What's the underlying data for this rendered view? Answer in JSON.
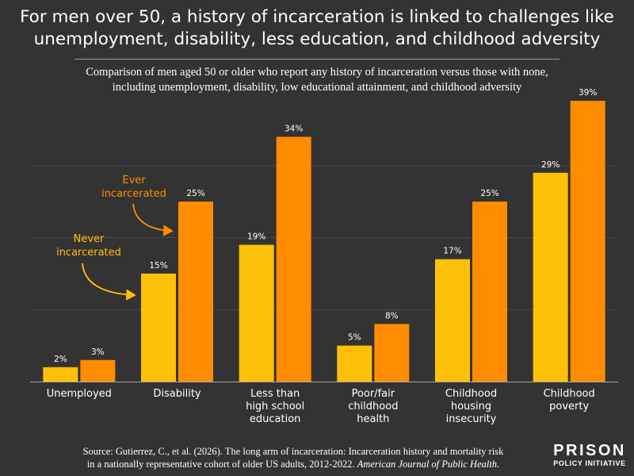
{
  "title_line1": "For men over 50, a history of incarceration is linked to challenges like",
  "title_line2": "unemployment, disability, less education, and childhood adversity",
  "subtitle_line1": "Comparison of men aged 50 or older who report any history of incarceration versus those with none,",
  "subtitle_line2": "including unemployment, disability, low educational attainment, and childhood adversity",
  "source_line1": "Source: Gutierrez, C., et al. (2026). The long arm of incarceration: Incarceration history and mortality risk",
  "source_line2_plain": "in a nationally representative cohort of older US adults, 2012-2022.",
  "source_line2_italic": "American Journal of Public Health.",
  "logo_line1": "PRISON",
  "logo_line2": "POLICY INITIATIVE",
  "colors": {
    "background": "#333333",
    "never": "#FFC107",
    "ever": "#FF8C00",
    "grid": "#4a4a4a",
    "annotation_never": "#FFC107",
    "annotation_ever": "#FF8C00"
  },
  "chart_data": {
    "type": "bar",
    "categories": [
      [
        "Unemployed"
      ],
      [
        "Disability"
      ],
      [
        "Less than",
        "high school",
        "education"
      ],
      [
        "Poor/fair",
        "childhood",
        "health"
      ],
      [
        "Childhood",
        "housing",
        "insecurity"
      ],
      [
        "Childhood",
        "poverty"
      ]
    ],
    "series": [
      {
        "name": "Never incarcerated",
        "values": [
          2,
          15,
          19,
          5,
          17,
          29
        ],
        "labels": [
          "2%",
          "15%",
          "19%",
          "5%",
          "17%",
          "29%"
        ]
      },
      {
        "name": "Ever incarcerated",
        "values": [
          3,
          25,
          34,
          8,
          25,
          39
        ],
        "labels": [
          "3%",
          "25%",
          "34%",
          "8%",
          "25%",
          "39%"
        ]
      }
    ],
    "ylim": [
      0,
      40
    ],
    "grid": true,
    "annotations": [
      {
        "lines": [
          "Never",
          "incarcerated"
        ],
        "series": "Never incarcerated"
      },
      {
        "lines": [
          "Ever",
          "incarcerated"
        ],
        "series": "Ever incarcerated"
      }
    ]
  }
}
